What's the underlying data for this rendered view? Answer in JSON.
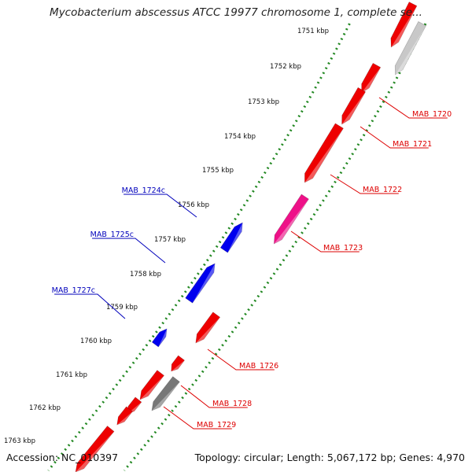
{
  "title": "Mycobacterium abscessus ATCC 19977 chromosome 1, complete se...",
  "accession": "Accession: NC_010397",
  "summary": "Topology: circular; Length: 5,067,172 bp; Genes: 4,970",
  "colors": {
    "forward_gene": "#ee0000",
    "reverse_gene": "#0000ee",
    "highlight_gene": "#ee1188",
    "gray_gene": "#777777",
    "light_gray_gene": "#c8c8c8",
    "backbone": "#888888",
    "tick_dots": "#228822",
    "forward_label": "#dd0000",
    "reverse_label": "#0000bb"
  },
  "ticks": [
    "1751 kbp",
    "1752 kbp",
    "1753 kbp",
    "1754 kbp",
    "1755 kbp",
    "1756 kbp",
    "1757 kbp",
    "1758 kbp",
    "1759 kbp",
    "1760 kbp",
    "1761 kbp",
    "1762 kbp",
    "1763 kbp"
  ],
  "genes": [
    {
      "id": "gene-top",
      "strand": "forward",
      "label": ""
    },
    {
      "id": "gene-top-gray",
      "strand": "gray",
      "label": ""
    },
    {
      "id": "gene-1720",
      "strand": "forward",
      "label": "MAB_1720"
    },
    {
      "id": "gene-1721",
      "strand": "forward",
      "label": "MAB_1721"
    },
    {
      "id": "gene-1722",
      "strand": "forward",
      "label": "MAB_1722"
    },
    {
      "id": "gene-1723",
      "strand": "highlight",
      "label": "MAB_1723"
    },
    {
      "id": "gene-1724c",
      "strand": "reverse",
      "label": "MAB_1724c"
    },
    {
      "id": "gene-1725c",
      "strand": "reverse",
      "label": "MAB_1725c"
    },
    {
      "id": "gene-1726",
      "strand": "forward",
      "label": "MAB_1726"
    },
    {
      "id": "gene-1727c",
      "strand": "reverse",
      "label": "MAB_1727c"
    },
    {
      "id": "gene-1728",
      "strand": "forward",
      "label": "MAB_1728"
    },
    {
      "id": "gene-1729",
      "strand": "gray",
      "label": "MAB_1729"
    },
    {
      "id": "gene-small-a",
      "strand": "forward",
      "label": ""
    },
    {
      "id": "gene-small-b",
      "strand": "forward",
      "label": ""
    },
    {
      "id": "gene-small-c",
      "strand": "forward",
      "label": ""
    },
    {
      "id": "gene-bottom",
      "strand": "forward",
      "label": ""
    }
  ]
}
